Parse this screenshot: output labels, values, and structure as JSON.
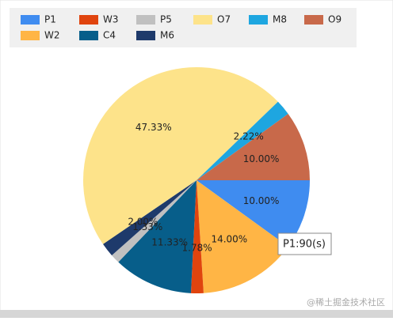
{
  "chart_data": {
    "type": "pie",
    "categories": [
      "P1",
      "W2",
      "W3",
      "C4",
      "P5",
      "M6",
      "O7",
      "M8",
      "O9"
    ],
    "values": [
      10.0,
      14.0,
      1.78,
      11.33,
      1.33,
      2.0,
      47.33,
      2.22,
      10.0
    ],
    "value_labels": [
      "10.00%",
      "14.00%",
      "1.78%",
      "11.33%",
      "1.33%",
      "2.00%",
      "47.33%",
      "2.22%",
      "10.00%"
    ],
    "colors": [
      "#3f8cf0",
      "#ffb545",
      "#e0440e",
      "#075e8a",
      "#c0c0c0",
      "#1e3a6b",
      "#fde38a",
      "#1ea6e0",
      "#c8694a"
    ],
    "legend_order": [
      0,
      2,
      4,
      6,
      7,
      8,
      1,
      3,
      5
    ],
    "tooltip": "P1:90(s)",
    "watermark": "@稀土掘金技术社区"
  }
}
